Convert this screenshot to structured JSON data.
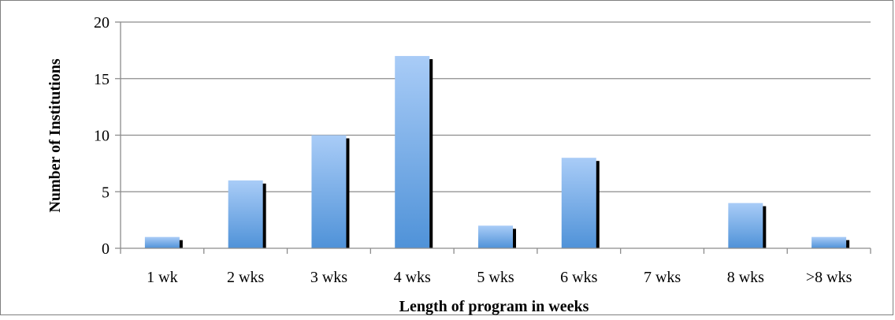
{
  "chart_data": {
    "type": "bar",
    "title": "",
    "xlabel": "Length of program in weeks",
    "ylabel": "Number of Institutions",
    "categories": [
      "1 wk",
      "2 wks",
      "3 wks",
      "4 wks",
      "5 wks",
      "6 wks",
      "7 wks",
      "8 wks",
      ">8 wks"
    ],
    "series": [
      {
        "values": [
          1,
          6,
          10,
          17,
          2,
          8,
          0,
          4,
          1
        ]
      }
    ],
    "ylim": [
      0,
      20
    ],
    "yticks": [
      "0",
      "5",
      "10",
      "15",
      "20"
    ],
    "grid": true,
    "legend": "none",
    "colors": {
      "bar_top": "#a9ccf7",
      "bar_bottom": "#4f92d8",
      "bar_shadow": "#000000",
      "grid": "#8c8c8c",
      "axis": "#8c8c8c"
    }
  }
}
